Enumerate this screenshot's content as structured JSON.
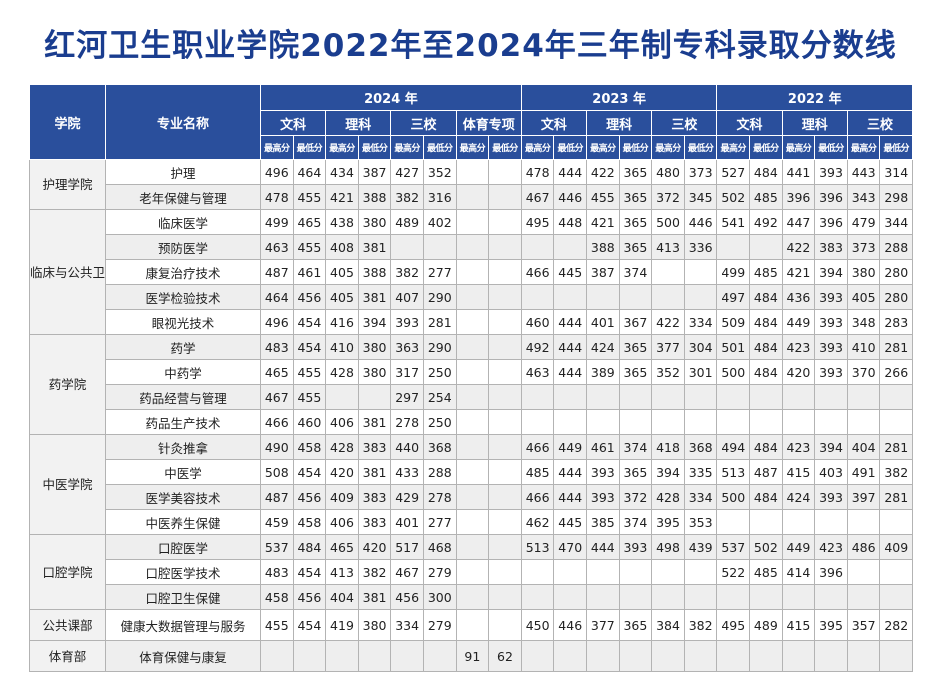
{
  "title": "红河卫生职业学院2022年至2024年三年制专科录取分数线",
  "header": {
    "college": "学院",
    "major": "专业名称",
    "years": [
      "2024 年",
      "2023 年",
      "2022 年"
    ],
    "categories_2024": [
      "文科",
      "理科",
      "三校",
      "体育专项"
    ],
    "categories_2023": [
      "文科",
      "理科",
      "三校"
    ],
    "categories_2022": [
      "文科",
      "理科",
      "三校"
    ],
    "max": "最高分",
    "min": "最低分"
  },
  "groups": [
    {
      "college": "护理学院",
      "rows": [
        {
          "major": "护理",
          "v": [
            "496",
            "464",
            "434",
            "387",
            "427",
            "352",
            "",
            "",
            "478",
            "444",
            "422",
            "365",
            "480",
            "373",
            "527",
            "484",
            "441",
            "393",
            "443",
            "314"
          ]
        },
        {
          "major": "老年保健与管理",
          "v": [
            "478",
            "455",
            "421",
            "388",
            "382",
            "316",
            "",
            "",
            "467",
            "446",
            "455",
            "365",
            "372",
            "345",
            "502",
            "485",
            "396",
            "396",
            "343",
            "298"
          ]
        }
      ]
    },
    {
      "college": "临床与公共卫生学院",
      "rows": [
        {
          "major": "临床医学",
          "v": [
            "499",
            "465",
            "438",
            "380",
            "489",
            "402",
            "",
            "",
            "495",
            "448",
            "421",
            "365",
            "500",
            "446",
            "541",
            "492",
            "447",
            "396",
            "479",
            "344"
          ]
        },
        {
          "major": "预防医学",
          "v": [
            "463",
            "455",
            "408",
            "381",
            "",
            "",
            "",
            "",
            "",
            "",
            "388",
            "365",
            "413",
            "336",
            "",
            "",
            "422",
            "383",
            "373",
            "288"
          ]
        },
        {
          "major": "康复治疗技术",
          "v": [
            "487",
            "461",
            "405",
            "388",
            "382",
            "277",
            "",
            "",
            "466",
            "445",
            "387",
            "374",
            "",
            "",
            "499",
            "485",
            "421",
            "394",
            "380",
            "280"
          ]
        },
        {
          "major": "医学检验技术",
          "v": [
            "464",
            "456",
            "405",
            "381",
            "407",
            "290",
            "",
            "",
            "",
            "",
            "",
            "",
            "",
            "",
            "497",
            "484",
            "436",
            "393",
            "405",
            "280"
          ]
        },
        {
          "major": "眼视光技术",
          "v": [
            "496",
            "454",
            "416",
            "394",
            "393",
            "281",
            "",
            "",
            "460",
            "444",
            "401",
            "367",
            "422",
            "334",
            "509",
            "484",
            "449",
            "393",
            "348",
            "283"
          ]
        }
      ]
    },
    {
      "college": "药学院",
      "rows": [
        {
          "major": "药学",
          "v": [
            "483",
            "454",
            "410",
            "380",
            "363",
            "290",
            "",
            "",
            "492",
            "444",
            "424",
            "365",
            "377",
            "304",
            "501",
            "484",
            "423",
            "393",
            "410",
            "281"
          ]
        },
        {
          "major": "中药学",
          "v": [
            "465",
            "455",
            "428",
            "380",
            "317",
            "250",
            "",
            "",
            "463",
            "444",
            "389",
            "365",
            "352",
            "301",
            "500",
            "484",
            "420",
            "393",
            "370",
            "266"
          ]
        },
        {
          "major": "药品经营与管理",
          "v": [
            "467",
            "455",
            "",
            "",
            "297",
            "254",
            "",
            "",
            "",
            "",
            "",
            "",
            "",
            "",
            "",
            "",
            "",
            "",
            "",
            ""
          ]
        },
        {
          "major": "药品生产技术",
          "v": [
            "466",
            "460",
            "406",
            "381",
            "278",
            "250",
            "",
            "",
            "",
            "",
            "",
            "",
            "",
            "",
            "",
            "",
            "",
            "",
            "",
            ""
          ]
        }
      ]
    },
    {
      "college": "中医学院",
      "rows": [
        {
          "major": "针灸推拿",
          "v": [
            "490",
            "458",
            "428",
            "383",
            "440",
            "368",
            "",
            "",
            "466",
            "449",
            "461",
            "374",
            "418",
            "368",
            "494",
            "484",
            "423",
            "394",
            "404",
            "281"
          ]
        },
        {
          "major": "中医学",
          "v": [
            "508",
            "454",
            "420",
            "381",
            "433",
            "288",
            "",
            "",
            "485",
            "444",
            "393",
            "365",
            "394",
            "335",
            "513",
            "487",
            "415",
            "403",
            "491",
            "382"
          ]
        },
        {
          "major": "医学美容技术",
          "v": [
            "487",
            "456",
            "409",
            "383",
            "429",
            "278",
            "",
            "",
            "466",
            "444",
            "393",
            "372",
            "428",
            "334",
            "500",
            "484",
            "424",
            "393",
            "397",
            "281"
          ]
        },
        {
          "major": "中医养生保健",
          "v": [
            "459",
            "458",
            "406",
            "383",
            "401",
            "277",
            "",
            "",
            "462",
            "445",
            "385",
            "374",
            "395",
            "353",
            "",
            "",
            "",
            "",
            "",
            ""
          ]
        }
      ]
    },
    {
      "college": "口腔学院",
      "rows": [
        {
          "major": "口腔医学",
          "v": [
            "537",
            "484",
            "465",
            "420",
            "517",
            "468",
            "",
            "",
            "513",
            "470",
            "444",
            "393",
            "498",
            "439",
            "537",
            "502",
            "449",
            "423",
            "486",
            "409"
          ]
        },
        {
          "major": "口腔医学技术",
          "v": [
            "483",
            "454",
            "413",
            "382",
            "467",
            "279",
            "",
            "",
            "",
            "",
            "",
            "",
            "",
            "",
            "522",
            "485",
            "414",
            "396",
            "",
            ""
          ]
        },
        {
          "major": "口腔卫生保健",
          "v": [
            "458",
            "456",
            "404",
            "381",
            "456",
            "300",
            "",
            "",
            "",
            "",
            "",
            "",
            "",
            "",
            "",
            "",
            "",
            "",
            "",
            ""
          ]
        }
      ]
    },
    {
      "college": "公共课部",
      "rows": [
        {
          "major": "健康大数据管理与服务",
          "v": [
            "455",
            "454",
            "419",
            "380",
            "334",
            "279",
            "",
            "",
            "450",
            "446",
            "377",
            "365",
            "384",
            "382",
            "495",
            "489",
            "415",
            "395",
            "357",
            "282"
          ]
        }
      ]
    },
    {
      "college": "体育部",
      "rows": [
        {
          "major": "体育保健与康复",
          "v": [
            "",
            "",
            "",
            "",
            "",
            "",
            "91",
            "62",
            "",
            "",
            "",
            "",
            "",
            "",
            "",
            "",
            "",
            "",
            "",
            ""
          ]
        }
      ]
    }
  ]
}
